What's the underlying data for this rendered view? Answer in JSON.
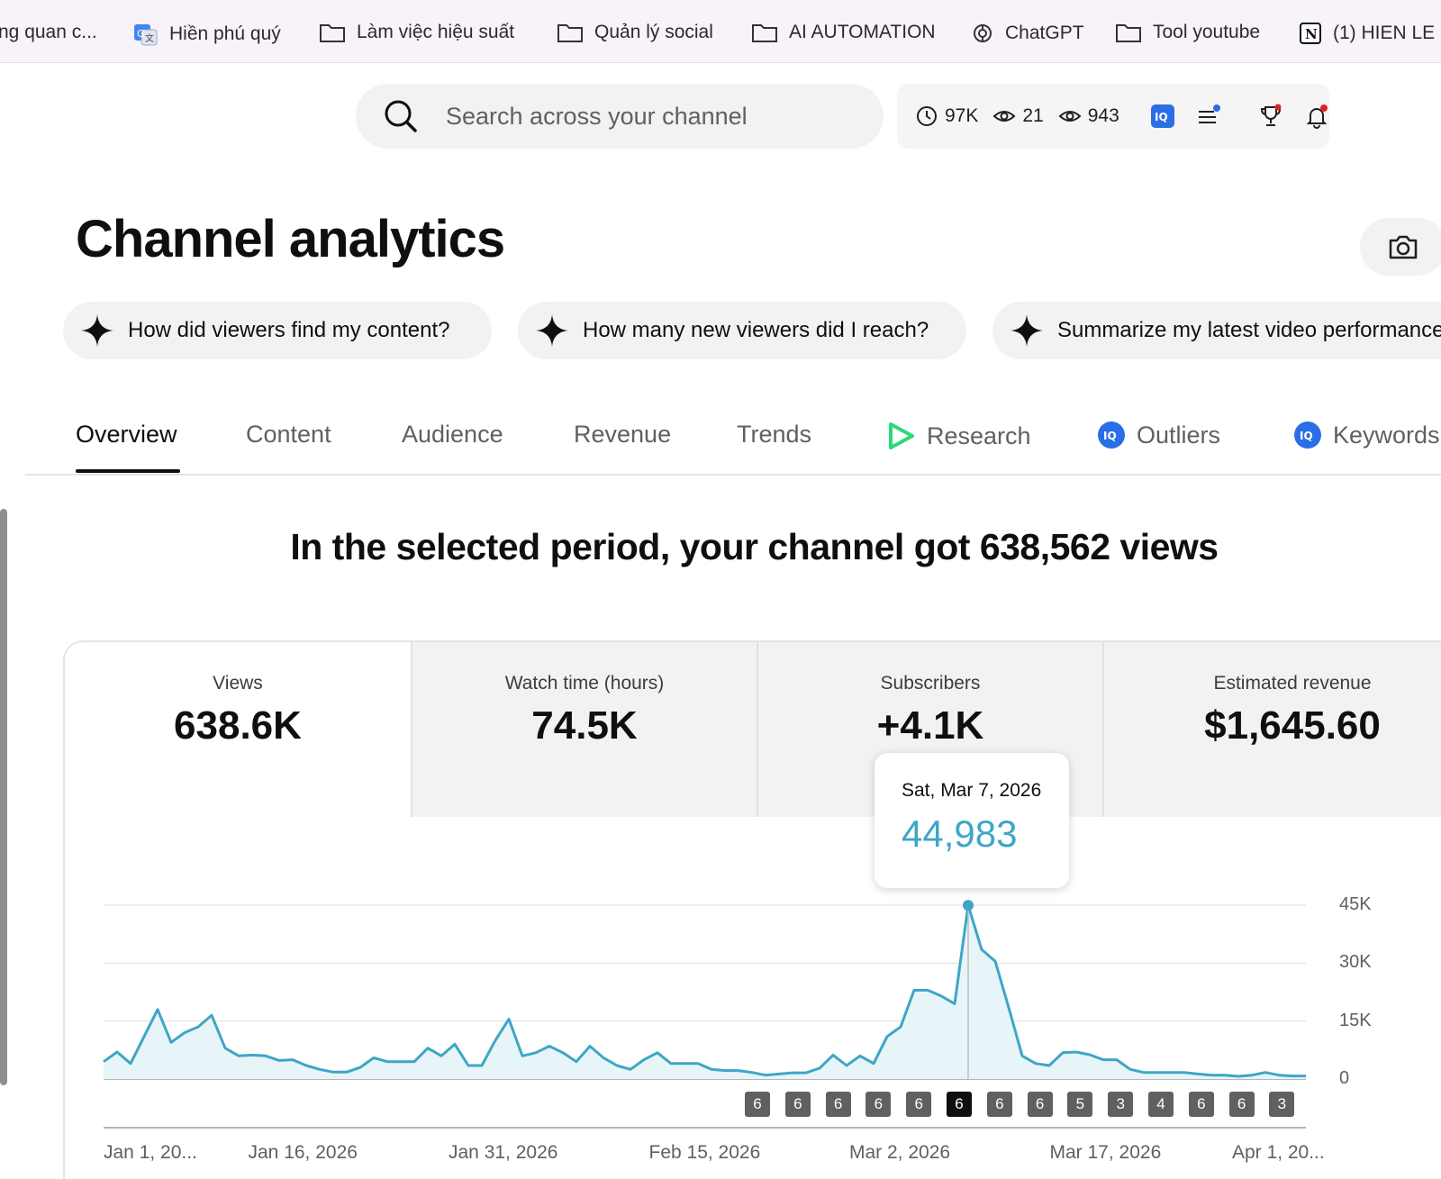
{
  "bookmarks": [
    {
      "label": "ng quan c...",
      "icon": "none"
    },
    {
      "label": "Hiền phú quý",
      "icon": "translate-icon"
    },
    {
      "label": "Làm việc hiệu suất",
      "icon": "folder-icon"
    },
    {
      "label": "Quản lý social",
      "icon": "folder-icon"
    },
    {
      "label": "AI AUTOMATION",
      "icon": "folder-icon"
    },
    {
      "label": "ChatGPT",
      "icon": "openai-icon"
    },
    {
      "label": "Tool youtube",
      "icon": "folder-icon"
    },
    {
      "label": "(1) HIEN LE",
      "icon": "notion-icon"
    }
  ],
  "search": {
    "placeholder": "Search across your channel"
  },
  "tools": {
    "watch_hours": "97K",
    "views_a": "21",
    "views_b": "943"
  },
  "page": {
    "title": "Channel analytics",
    "headline": "In the selected period, your channel got 638,562 views"
  },
  "chips": [
    "How did viewers find my content?",
    "How many new viewers did I reach?",
    "Summarize my latest video performance"
  ],
  "tabs": [
    {
      "label": "Overview",
      "active": true
    },
    {
      "label": "Content"
    },
    {
      "label": "Audience"
    },
    {
      "label": "Revenue"
    },
    {
      "label": "Trends"
    },
    {
      "label": "Research",
      "icon": "research-icon"
    },
    {
      "label": "Outliers",
      "icon": "vidiq-icon"
    },
    {
      "label": "Keywords",
      "icon": "vidiq-icon"
    }
  ],
  "metrics": [
    {
      "label": "Views",
      "value": "638.6K"
    },
    {
      "label": "Watch time (hours)",
      "value": "74.5K"
    },
    {
      "label": "Subscribers",
      "value": "+4.1K"
    },
    {
      "label": "Estimated revenue",
      "value": "$1,645.60"
    }
  ],
  "tooltip": {
    "date": "Sat, Mar 7, 2026",
    "value": "44,983"
  },
  "colors": {
    "line": "#3ea6c6",
    "fill": "#e8f5f8",
    "badge": "#606060",
    "badge_selected": "#0f0f0f"
  },
  "chart_data": {
    "type": "area",
    "metric": "Views",
    "y_ticks": [
      "45K",
      "30K",
      "15K",
      "0"
    ],
    "ylim": [
      0,
      45000
    ],
    "x_tick_labels": [
      "Jan 1, 20...",
      "Jan 16, 2026",
      "Jan 31, 2026",
      "Feb 15, 2026",
      "Mar 2, 2026",
      "Mar 17, 2026",
      "Apr 1, 20..."
    ],
    "values": [
      4500,
      7000,
      4000,
      11000,
      18000,
      9500,
      12000,
      13500,
      16500,
      8000,
      6000,
      6200,
      6000,
      4800,
      5000,
      3500,
      2500,
      1800,
      1800,
      3000,
      5500,
      4500,
      4500,
      4500,
      8000,
      6000,
      9000,
      3500,
      3500,
      10000,
      15500,
      6000,
      6800,
      8500,
      6800,
      4500,
      8500,
      5500,
      3500,
      2500,
      5000,
      6800,
      4000,
      4000,
      4000,
      2500,
      2200,
      2200,
      1700,
      1000,
      1300,
      1600,
      1600,
      2800,
      6200,
      3500,
      6000,
      4000,
      11000,
      13500,
      23000,
      23000,
      21500,
      19500,
      44983,
      33500,
      30500,
      18500,
      6000,
      4000,
      3500,
      6800,
      7000,
      6300,
      5000,
      5000,
      2500,
      1700,
      1700,
      1700,
      1700,
      1300,
      1000,
      1000,
      700,
      1000,
      1700,
      1000,
      800,
      800
    ],
    "selected_index": 64,
    "annotation_badges": [
      "6",
      "6",
      "6",
      "6",
      "6",
      "6",
      "6",
      "6",
      "5",
      "3",
      "4",
      "6",
      "6",
      "3"
    ],
    "selected_badge_index": 5
  }
}
